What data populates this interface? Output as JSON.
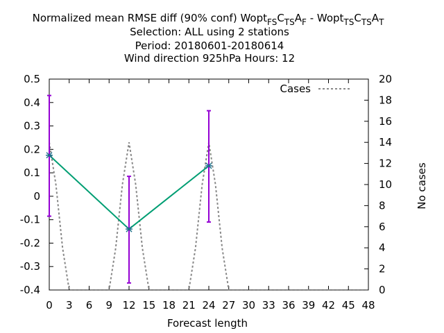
{
  "chart_data": {
    "type": "line",
    "title_lines": [
      "Normalized mean RMSE diff (90% conf) Wopt",
      "Selection: ALL using     2 stations",
      "Period: 20180601-20180614",
      "Wind direction 925hPa   Hours:  12"
    ],
    "title_formula": {
      "prefix": "Normalized mean RMSE diff (90% conf) ",
      "parts": [
        {
          "t": "Wopt"
        },
        {
          "t": "FS",
          "sub": true
        },
        {
          "t": "C"
        },
        {
          "t": "TS",
          "sub": true
        },
        {
          "t": "A"
        },
        {
          "t": "F",
          "sub": true
        },
        {
          "t": " - Wopt"
        },
        {
          "t": "TS",
          "sub": true
        },
        {
          "t": "C"
        },
        {
          "t": "TS",
          "sub": true
        },
        {
          "t": "A"
        },
        {
          "t": "T",
          "sub": true
        }
      ]
    },
    "xlabel": "Forecast length",
    "ylabel": "",
    "y2label": "No cases",
    "xlim": [
      0,
      48
    ],
    "ylim": [
      -0.4,
      0.5
    ],
    "y2lim": [
      0,
      20
    ],
    "xticks": [
      0,
      3,
      6,
      9,
      12,
      15,
      18,
      21,
      24,
      27,
      30,
      33,
      36,
      39,
      42,
      45,
      48
    ],
    "yticks": [
      -0.4,
      -0.3,
      -0.2,
      -0.1,
      0,
      0.1,
      0.2,
      0.3,
      0.4,
      0.5
    ],
    "yticklabels": [
      "-0.4",
      "-0.3",
      "-0.2",
      "-0.1",
      "0",
      "0.1",
      "0.2",
      "0.3",
      "0.4",
      "0.5"
    ],
    "y2ticks": [
      0,
      2,
      4,
      6,
      8,
      10,
      12,
      14,
      16,
      18,
      20
    ],
    "grid": false,
    "legend_position": "top-right",
    "series": [
      {
        "name": "",
        "color": "#009e73",
        "axis": "y",
        "x": [
          0,
          12,
          24
        ],
        "y": [
          0.175,
          -0.14,
          0.13
        ],
        "error_low": [
          -0.085,
          -0.37,
          -0.11
        ],
        "error_high": [
          0.43,
          0.085,
          0.365
        ],
        "error_color": "#9400d3"
      },
      {
        "name": "Cases",
        "color": "#888888",
        "dashed": true,
        "axis": "y2",
        "x": [
          0,
          1,
          2,
          3,
          4,
          5,
          6,
          7,
          8,
          9,
          10,
          11,
          12,
          13,
          14,
          15,
          16,
          17,
          18,
          19,
          20,
          21,
          22,
          23,
          24,
          25,
          26,
          27,
          28,
          29,
          30,
          31,
          32,
          33,
          34,
          35,
          36,
          37,
          38,
          39,
          40,
          41,
          42,
          43,
          44,
          45,
          46,
          47,
          48
        ],
        "y": [
          14,
          10,
          4,
          0,
          0,
          0,
          0,
          0,
          0,
          0,
          4,
          10,
          14,
          10,
          4,
          0,
          0,
          0,
          0,
          0,
          0,
          0,
          4,
          10,
          14,
          10,
          4,
          0,
          0,
          0,
          0,
          0,
          0,
          0,
          0,
          0,
          0,
          0,
          0,
          0,
          0,
          0,
          0,
          0,
          0,
          0,
          0,
          0,
          0
        ]
      }
    ]
  }
}
